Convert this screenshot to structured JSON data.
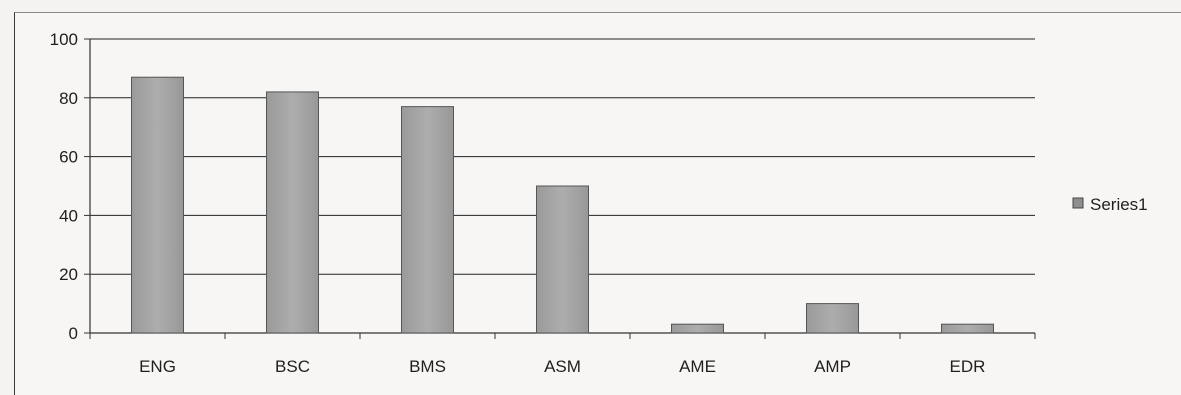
{
  "chart_data": {
    "type": "bar",
    "categories": [
      "ENG",
      "BSC",
      "BMS",
      "ASM",
      "AME",
      "AMP",
      "EDR"
    ],
    "series": [
      {
        "name": "Series1",
        "values": [
          87,
          82,
          77,
          50,
          3,
          10,
          3
        ]
      }
    ],
    "ylim": [
      0,
      100
    ],
    "yticks": [
      0,
      20,
      40,
      60,
      80,
      100
    ],
    "grid": true,
    "legend": "right",
    "title": "",
    "xlabel": "",
    "ylabel": "",
    "colors": {
      "bar": "#a3a3a3",
      "bar_edge": "#555555",
      "grid": "#222222",
      "legend_swatch": "#8e8e8e"
    }
  }
}
